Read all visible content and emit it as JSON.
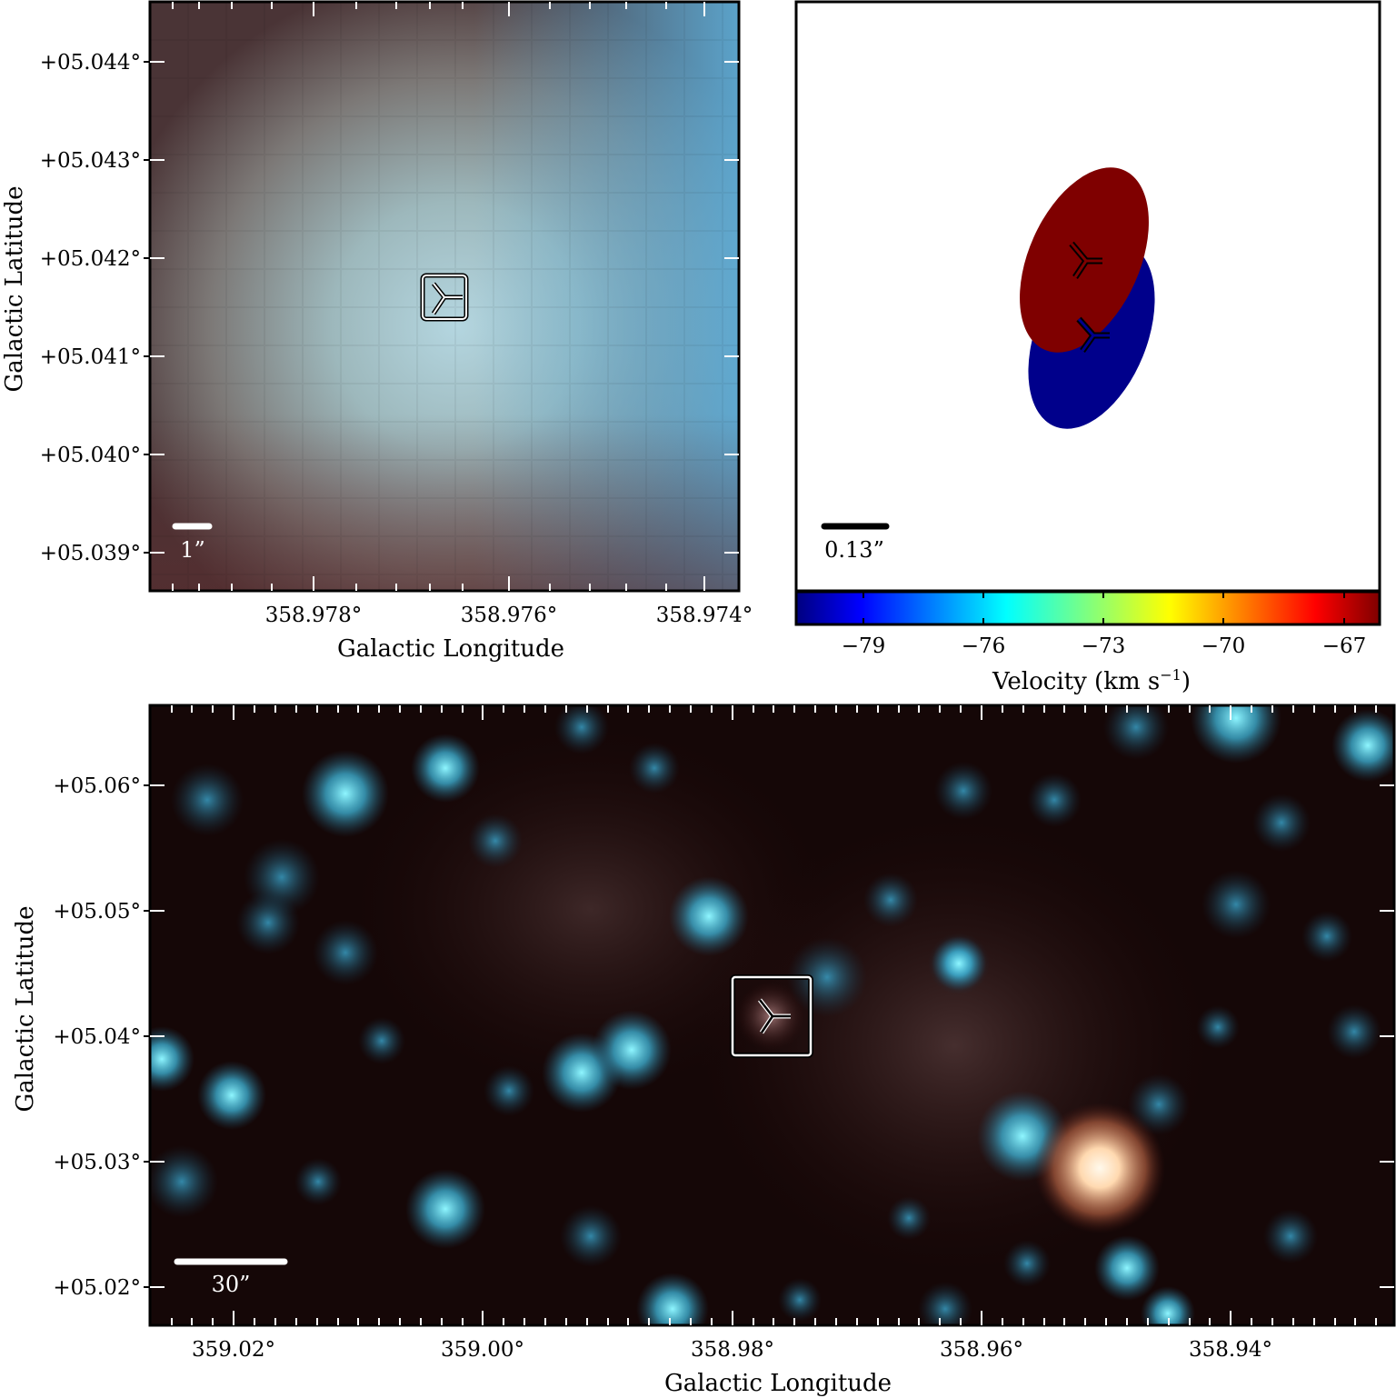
{
  "top_left_panel": {
    "ylabel": "Galactic Latitude",
    "xlabel": "Galactic Longitude",
    "yticks": [
      "+05.044°",
      "+05.043°",
      "+05.042°",
      "+05.041°",
      "+05.040°",
      "+05.039°"
    ],
    "xticks": [
      "358.978°",
      "358.976°",
      "358.974°"
    ],
    "scalebar_label": "1”"
  },
  "top_right_panel": {
    "scalebar_label": "0.13”",
    "colorbar_ticks": [
      "−79",
      "−76",
      "−73",
      "−70",
      "−67"
    ],
    "colorbar_label": "Velocity (km s",
    "colorbar_label_sup": "−1",
    "colorbar_label_close": ")",
    "colormap": [
      "#00007f",
      "#0000ff",
      "#007fff",
      "#00ffff",
      "#7fff7f",
      "#ffff00",
      "#ff7f00",
      "#ff0000",
      "#7f0000"
    ],
    "ellipse_colors": {
      "red": "#7f0000",
      "blue": "#00008b"
    }
  },
  "bottom_panel": {
    "ylabel": "Galactic Latitude",
    "xlabel": "Galactic Longitude",
    "yticks": [
      "+05.06°",
      "+05.05°",
      "+05.04°",
      "+05.03°",
      "+05.02°"
    ],
    "xticks": [
      "359.02°",
      "359.00°",
      "358.98°",
      "358.96°",
      "358.94°"
    ],
    "scalebar_label": "30”"
  }
}
